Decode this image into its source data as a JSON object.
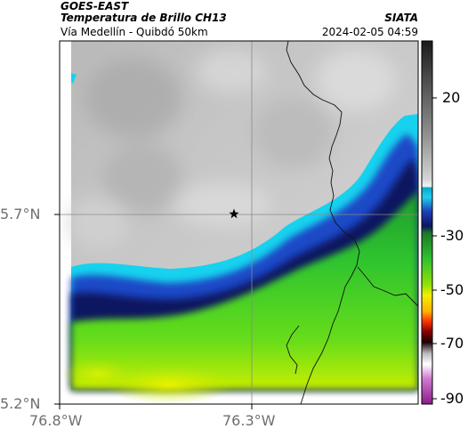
{
  "header": {
    "satellite": "GOES-EAST",
    "product": "Temperatura de Brillo CH13",
    "region": "Vía Medellín - Quibdó 50km",
    "agency": "SIATA",
    "datetime": "2024-02-05 04:59"
  },
  "map": {
    "lat_ticks": [
      "5.7°N",
      "5.2°N"
    ],
    "lon_ticks": [
      "76.8°W",
      "76.3°W"
    ],
    "marker": "star",
    "colors": {
      "cold_cloud": "#c0c0c0",
      "cloud_edge_cyan": "#19d3ee",
      "blue": "#1f3fbf",
      "navy": "#0b1660",
      "green": "#2fc72f",
      "yellow": "#e6f000",
      "border_line": "#000000",
      "grid_line": "#8a8a8a"
    }
  },
  "colorbar": {
    "labels": [
      "20",
      "-30",
      "-50",
      "-70",
      "-90"
    ]
  }
}
